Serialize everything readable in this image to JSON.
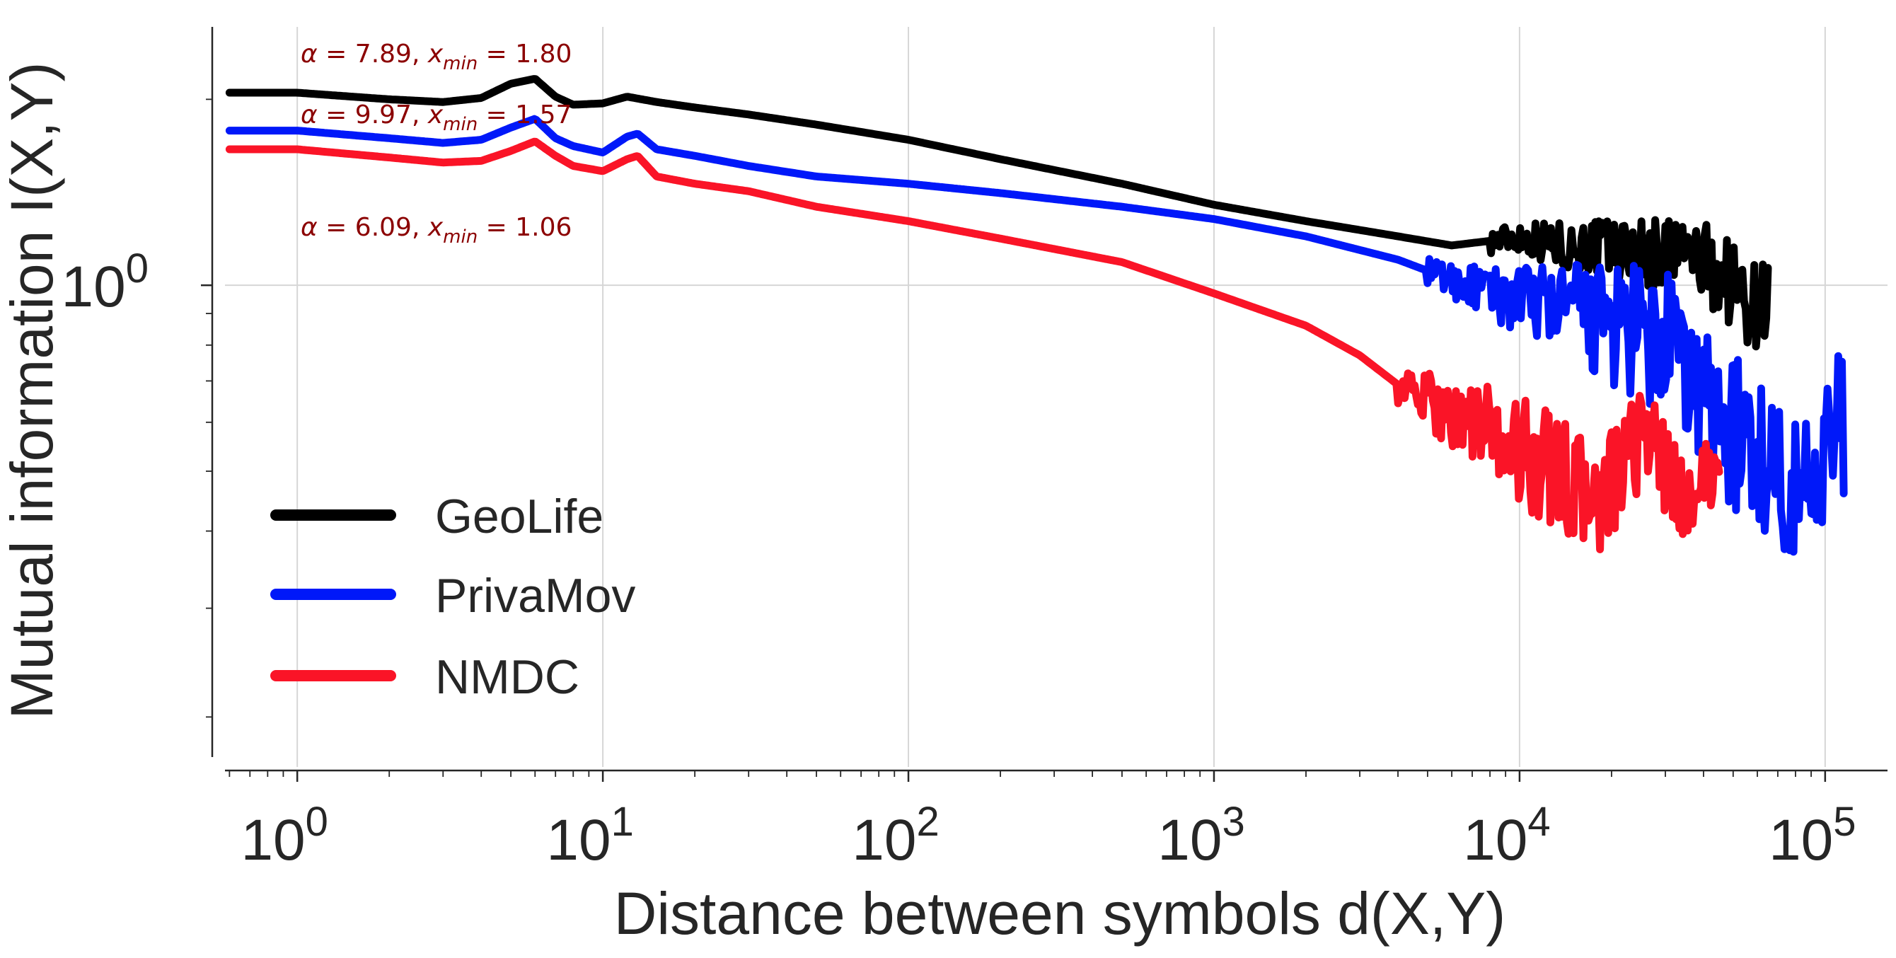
{
  "chart_data": {
    "type": "line",
    "title": "",
    "xlabel": "Distance between symbols d(X,Y)",
    "ylabel": "Mutual information I(X,Y)",
    "xscale": "log",
    "yscale": "log",
    "xlim": [
      0.58,
      160000
    ],
    "ylim": [
      0.166,
      2.62
    ],
    "grid": true,
    "legend_position": "lower-left",
    "xticks": [
      {
        "value": 1,
        "base": "10",
        "exp": "0"
      },
      {
        "value": 10,
        "base": "10",
        "exp": "1"
      },
      {
        "value": 100,
        "base": "10",
        "exp": "2"
      },
      {
        "value": 1000,
        "base": "10",
        "exp": "3"
      },
      {
        "value": 10000,
        "base": "10",
        "exp": "4"
      },
      {
        "value": 100000,
        "base": "10",
        "exp": "5"
      }
    ],
    "yticks": [
      {
        "value": 1,
        "base": "10",
        "exp": "0"
      }
    ],
    "annotations": [
      {
        "alpha": "7.89",
        "xmin": "1.80",
        "color": "#8b0000"
      },
      {
        "alpha": "9.97",
        "xmin": "1.57",
        "color": "#8b0000"
      },
      {
        "alpha": "6.09",
        "xmin": "1.06",
        "color": "#8b0000"
      }
    ],
    "series": [
      {
        "name": "GeoLife",
        "color": "#000000",
        "noise": [
          [
            8000,
            0.02
          ],
          [
            20000,
            0.05
          ],
          [
            40000,
            0.07
          ]
        ],
        "points": [
          [
            0.6,
            2.05
          ],
          [
            1,
            2.05
          ],
          [
            2,
            2.0
          ],
          [
            3,
            1.98
          ],
          [
            4,
            2.01
          ],
          [
            5,
            2.12
          ],
          [
            6,
            2.16
          ],
          [
            7,
            2.02
          ],
          [
            8,
            1.96
          ],
          [
            10,
            1.97
          ],
          [
            12,
            2.02
          ],
          [
            15,
            1.98
          ],
          [
            20,
            1.94
          ],
          [
            30,
            1.89
          ],
          [
            50,
            1.82
          ],
          [
            100,
            1.72
          ],
          [
            200,
            1.6
          ],
          [
            500,
            1.46
          ],
          [
            1000,
            1.35
          ],
          [
            2000,
            1.27
          ],
          [
            4000,
            1.2
          ],
          [
            6000,
            1.16
          ],
          [
            8000,
            1.18
          ],
          [
            10000,
            1.2
          ],
          [
            14000,
            1.16
          ],
          [
            20000,
            1.15
          ],
          [
            28000,
            1.12
          ],
          [
            35000,
            1.14
          ],
          [
            40000,
            1.08
          ],
          [
            45000,
            1.05
          ],
          [
            50000,
            1.0
          ],
          [
            55000,
            0.95
          ],
          [
            60000,
            0.92
          ],
          [
            65000,
            0.98
          ]
        ]
      },
      {
        "name": "PrivaMov",
        "color": "#0018f9",
        "noise": [
          [
            5000,
            0.02
          ],
          [
            14000,
            0.07
          ],
          [
            30000,
            0.14
          ],
          [
            70000,
            0.12
          ]
        ],
        "points": [
          [
            0.6,
            1.78
          ],
          [
            1,
            1.78
          ],
          [
            2,
            1.73
          ],
          [
            3,
            1.7
          ],
          [
            4,
            1.72
          ],
          [
            5,
            1.8
          ],
          [
            6,
            1.86
          ],
          [
            7,
            1.73
          ],
          [
            8,
            1.68
          ],
          [
            10,
            1.64
          ],
          [
            12,
            1.74
          ],
          [
            13,
            1.76
          ],
          [
            15,
            1.66
          ],
          [
            20,
            1.62
          ],
          [
            30,
            1.56
          ],
          [
            50,
            1.5
          ],
          [
            100,
            1.46
          ],
          [
            200,
            1.41
          ],
          [
            500,
            1.34
          ],
          [
            1000,
            1.28
          ],
          [
            2000,
            1.2
          ],
          [
            4000,
            1.1
          ],
          [
            6000,
            1.02
          ],
          [
            8000,
            0.97
          ],
          [
            10000,
            0.95
          ],
          [
            14000,
            0.93
          ],
          [
            20000,
            0.86
          ],
          [
            30000,
            0.78
          ],
          [
            40000,
            0.66
          ],
          [
            50000,
            0.58
          ],
          [
            70000,
            0.5
          ],
          [
            80000,
            0.46
          ],
          [
            100000,
            0.55
          ],
          [
            115000,
            0.6
          ]
        ]
      },
      {
        "name": "NMDC",
        "color": "#fa1427",
        "noise": [
          [
            4000,
            0.03
          ],
          [
            10000,
            0.09
          ],
          [
            20000,
            0.09
          ],
          [
            40000,
            0.06
          ]
        ],
        "points": [
          [
            0.6,
            1.66
          ],
          [
            1,
            1.66
          ],
          [
            2,
            1.61
          ],
          [
            3,
            1.58
          ],
          [
            4,
            1.59
          ],
          [
            5,
            1.65
          ],
          [
            6,
            1.71
          ],
          [
            7,
            1.62
          ],
          [
            8,
            1.56
          ],
          [
            10,
            1.53
          ],
          [
            12,
            1.6
          ],
          [
            13,
            1.62
          ],
          [
            15,
            1.5
          ],
          [
            20,
            1.46
          ],
          [
            30,
            1.42
          ],
          [
            50,
            1.34
          ],
          [
            100,
            1.27
          ],
          [
            200,
            1.19
          ],
          [
            500,
            1.09
          ],
          [
            1000,
            0.97
          ],
          [
            2000,
            0.86
          ],
          [
            3000,
            0.77
          ],
          [
            4000,
            0.69
          ],
          [
            6000,
            0.62
          ],
          [
            8000,
            0.58
          ],
          [
            10000,
            0.54
          ],
          [
            14000,
            0.49
          ],
          [
            18000,
            0.44
          ],
          [
            22000,
            0.5
          ],
          [
            26000,
            0.6
          ],
          [
            30000,
            0.5
          ],
          [
            35000,
            0.44
          ],
          [
            40000,
            0.48
          ],
          [
            45000,
            0.52
          ]
        ]
      }
    ]
  }
}
